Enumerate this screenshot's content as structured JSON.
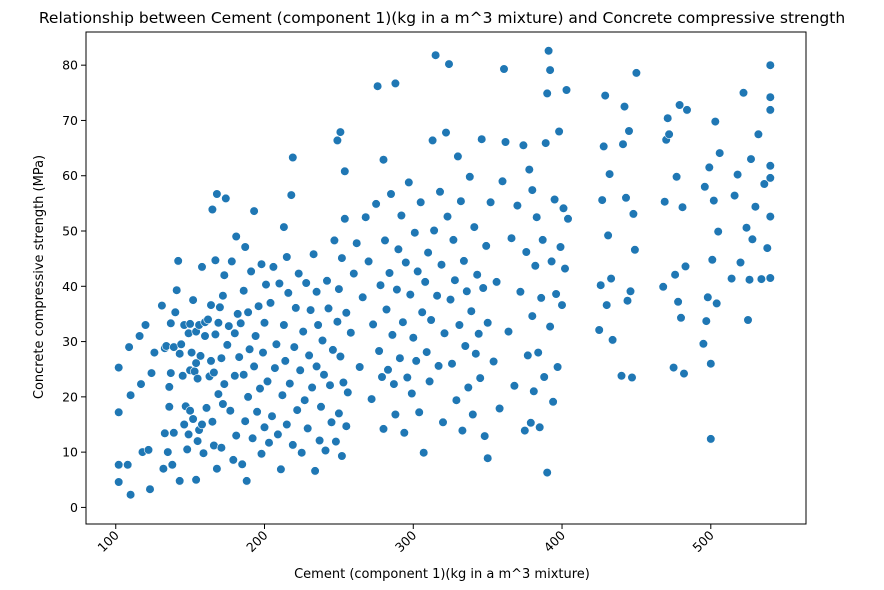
{
  "chart_data": {
    "type": "scatter",
    "title": "Relationship between Cement (component 1)(kg in a m^3 mixture) and Concrete compressive strength",
    "xlabel": "Cement (component 1)(kg in a m^3 mixture)",
    "ylabel": "Concrete compressive strength (MPa)",
    "xlim": [
      80,
      564
    ],
    "ylim": [
      -3,
      86
    ],
    "x_ticks": [
      100,
      200,
      300,
      400,
      500
    ],
    "x_tick_labels": [
      "100",
      "200",
      "300",
      "400",
      "500"
    ],
    "y_ticks": [
      0,
      10,
      20,
      30,
      40,
      50,
      60,
      70,
      80
    ],
    "y_tick_labels": [
      "0",
      "10",
      "20",
      "30",
      "40",
      "50",
      "60",
      "70",
      "80"
    ],
    "x_tick_rotation": 45,
    "grid": false,
    "legend": "none",
    "point_color": "#1f77b4",
    "point_edge_color": "#ffffff",
    "points": [
      [
        102,
        4.6
      ],
      [
        102,
        7.7
      ],
      [
        102,
        17.2
      ],
      [
        102,
        25.3
      ],
      [
        108,
        7.7
      ],
      [
        109,
        29
      ],
      [
        110,
        2.3
      ],
      [
        110,
        20.3
      ],
      [
        116,
        31
      ],
      [
        117,
        22.3
      ],
      [
        118,
        10
      ],
      [
        120,
        33
      ],
      [
        122,
        10.4
      ],
      [
        123,
        3.3
      ],
      [
        124,
        24.3
      ],
      [
        126,
        28
      ],
      [
        131,
        36.5
      ],
      [
        132,
        7
      ],
      [
        133,
        13.4
      ],
      [
        133,
        28.8
      ],
      [
        134,
        29.2
      ],
      [
        135,
        10
      ],
      [
        136,
        18.2
      ],
      [
        136,
        21.8
      ],
      [
        137,
        24.3
      ],
      [
        137,
        33.3
      ],
      [
        138,
        7.7
      ],
      [
        139,
        13.5
      ],
      [
        139,
        29
      ],
      [
        140,
        35.3
      ],
      [
        141,
        39.3
      ],
      [
        142,
        44.6
      ],
      [
        143,
        4.8
      ],
      [
        143,
        27.8
      ],
      [
        144,
        29.5
      ],
      [
        145,
        23.8
      ],
      [
        146,
        15
      ],
      [
        146,
        33
      ],
      [
        147,
        18.3
      ],
      [
        148,
        10.5
      ],
      [
        149,
        13.2
      ],
      [
        149,
        31.5
      ],
      [
        150,
        17.5
      ],
      [
        150,
        24.8
      ],
      [
        150,
        33.2
      ],
      [
        151,
        28
      ],
      [
        152,
        16
      ],
      [
        152,
        37.5
      ],
      [
        153,
        24.6
      ],
      [
        154,
        5
      ],
      [
        154,
        26.1
      ],
      [
        154,
        31.8
      ],
      [
        155,
        12
      ],
      [
        155,
        23.3
      ],
      [
        156,
        14
      ],
      [
        156,
        33
      ],
      [
        157,
        27.4
      ],
      [
        158,
        15
      ],
      [
        158,
        43.5
      ],
      [
        159,
        9.8
      ],
      [
        160,
        31
      ],
      [
        160,
        33.5
      ],
      [
        161,
        18
      ],
      [
        162,
        34
      ],
      [
        163,
        23.7
      ],
      [
        164,
        26.5
      ],
      [
        164,
        36.6
      ],
      [
        165,
        15.5
      ],
      [
        165,
        53.9
      ],
      [
        166,
        11.2
      ],
      [
        166,
        24.4
      ],
      [
        167,
        31.3
      ],
      [
        167,
        44.7
      ],
      [
        168,
        7
      ],
      [
        168,
        56.7
      ],
      [
        169,
        20.5
      ],
      [
        169,
        33.4
      ],
      [
        170,
        36.2
      ],
      [
        171,
        10.8
      ],
      [
        171,
        27
      ],
      [
        172,
        18.7
      ],
      [
        172,
        38.3
      ],
      [
        173,
        22.3
      ],
      [
        173,
        42
      ],
      [
        174,
        55.9
      ],
      [
        175,
        29.4
      ],
      [
        176,
        32.8
      ],
      [
        177,
        17.5
      ],
      [
        178,
        44.5
      ],
      [
        179,
        8.6
      ],
      [
        180,
        23.8
      ],
      [
        180,
        31.5
      ],
      [
        181,
        13
      ],
      [
        181,
        49
      ],
      [
        182,
        35
      ],
      [
        183,
        27.2
      ],
      [
        184,
        33.3
      ],
      [
        185,
        7.8
      ],
      [
        186,
        24
      ],
      [
        186,
        39.2
      ],
      [
        187,
        15.6
      ],
      [
        187,
        47.1
      ],
      [
        188,
        4.8
      ],
      [
        189,
        20
      ],
      [
        189,
        35.3
      ],
      [
        190,
        28.6
      ],
      [
        191,
        42.7
      ],
      [
        192,
        12.5
      ],
      [
        193,
        25.5
      ],
      [
        193,
        53.6
      ],
      [
        194,
        31
      ],
      [
        195,
        17.3
      ],
      [
        196,
        36.4
      ],
      [
        197,
        21.5
      ],
      [
        198,
        9.7
      ],
      [
        198,
        44
      ],
      [
        199,
        28
      ],
      [
        200,
        14.5
      ],
      [
        200,
        33.4
      ],
      [
        201,
        40.3
      ],
      [
        202,
        22.8
      ],
      [
        203,
        11.7
      ],
      [
        204,
        37
      ],
      [
        205,
        16.5
      ],
      [
        206,
        43.5
      ],
      [
        207,
        25.2
      ],
      [
        208,
        29.5
      ],
      [
        209,
        13.2
      ],
      [
        210,
        40.5
      ],
      [
        211,
        6.9
      ],
      [
        212,
        20.3
      ],
      [
        213,
        33
      ],
      [
        213,
        50.7
      ],
      [
        214,
        26.5
      ],
      [
        215,
        15
      ],
      [
        215,
        45.3
      ],
      [
        216,
        38.8
      ],
      [
        217,
        22.4
      ],
      [
        218,
        56.5
      ],
      [
        219,
        11.3
      ],
      [
        219,
        63.3
      ],
      [
        220,
        29
      ],
      [
        221,
        36.1
      ],
      [
        222,
        17.6
      ],
      [
        223,
        42.3
      ],
      [
        224,
        24.8
      ],
      [
        225,
        9.9
      ],
      [
        226,
        31.8
      ],
      [
        227,
        19.4
      ],
      [
        228,
        40.6
      ],
      [
        229,
        14.3
      ],
      [
        230,
        27.5
      ],
      [
        231,
        35.7
      ],
      [
        232,
        21.7
      ],
      [
        233,
        45.8
      ],
      [
        234,
        6.6
      ],
      [
        235,
        25.5
      ],
      [
        235,
        39
      ],
      [
        236,
        33
      ],
      [
        237,
        12.1
      ],
      [
        238,
        18.2
      ],
      [
        239,
        30.2
      ],
      [
        240,
        24
      ],
      [
        241,
        10.3
      ],
      [
        242,
        41
      ],
      [
        243,
        36
      ],
      [
        244,
        22.1
      ],
      [
        245,
        15.4
      ],
      [
        246,
        28.5
      ],
      [
        247,
        48.3
      ],
      [
        248,
        11.9
      ],
      [
        249,
        33.6
      ],
      [
        249,
        66.4
      ],
      [
        250,
        17
      ],
      [
        250,
        39.5
      ],
      [
        251,
        27.3
      ],
      [
        251,
        67.9
      ],
      [
        252,
        9.3
      ],
      [
        252,
        45.1
      ],
      [
        253,
        22.6
      ],
      [
        254,
        52.2
      ],
      [
        254,
        60.8
      ],
      [
        255,
        14.7
      ],
      [
        255,
        35.2
      ],
      [
        256,
        20.8
      ],
      [
        258,
        31.6
      ],
      [
        260,
        42.3
      ],
      [
        262,
        47.8
      ],
      [
        264,
        25.4
      ],
      [
        266,
        38
      ],
      [
        268,
        52.5
      ],
      [
        270,
        44.5
      ],
      [
        272,
        19.6
      ],
      [
        273,
        33.1
      ],
      [
        275,
        54.9
      ],
      [
        276,
        76.2
      ],
      [
        277,
        28.3
      ],
      [
        278,
        40.2
      ],
      [
        279,
        23.6
      ],
      [
        280,
        14.2
      ],
      [
        280,
        62.9
      ],
      [
        281,
        48.3
      ],
      [
        282,
        35.8
      ],
      [
        283,
        24.9
      ],
      [
        284,
        42.4
      ],
      [
        285,
        56.7
      ],
      [
        286,
        31.2
      ],
      [
        287,
        22.3
      ],
      [
        288,
        76.7
      ],
      [
        288,
        16.8
      ],
      [
        289,
        39.4
      ],
      [
        290,
        46.7
      ],
      [
        291,
        27
      ],
      [
        292,
        52.8
      ],
      [
        293,
        33.5
      ],
      [
        294,
        13.5
      ],
      [
        295,
        44.3
      ],
      [
        296,
        23.5
      ],
      [
        297,
        58.8
      ],
      [
        298,
        38.5
      ],
      [
        299,
        20.6
      ],
      [
        300,
        30.7
      ],
      [
        301,
        49.7
      ],
      [
        302,
        26.5
      ],
      [
        303,
        42.7
      ],
      [
        304,
        17.2
      ],
      [
        305,
        55.2
      ],
      [
        306,
        35.3
      ],
      [
        307,
        9.9
      ],
      [
        308,
        40.8
      ],
      [
        309,
        28.1
      ],
      [
        310,
        46.1
      ],
      [
        311,
        22.8
      ],
      [
        312,
        33.9
      ],
      [
        313,
        66.4
      ],
      [
        314,
        50.1
      ],
      [
        315,
        81.8
      ],
      [
        316,
        38.3
      ],
      [
        317,
        25.6
      ],
      [
        318,
        57.1
      ],
      [
        319,
        43.9
      ],
      [
        320,
        15.4
      ],
      [
        321,
        31.5
      ],
      [
        322,
        67.8
      ],
      [
        323,
        52.6
      ],
      [
        324,
        80.2
      ],
      [
        325,
        37.6
      ],
      [
        326,
        26
      ],
      [
        327,
        48.4
      ],
      [
        328,
        41.1
      ],
      [
        329,
        19.4
      ],
      [
        330,
        63.5
      ],
      [
        331,
        33
      ],
      [
        332,
        55.4
      ],
      [
        333,
        13.9
      ],
      [
        334,
        44.6
      ],
      [
        335,
        29.2
      ],
      [
        336,
        39.1
      ],
      [
        337,
        21.7
      ],
      [
        338,
        59.8
      ],
      [
        339,
        35.5
      ],
      [
        340,
        16.8
      ],
      [
        341,
        50.7
      ],
      [
        342,
        27.8
      ],
      [
        343,
        42.1
      ],
      [
        344,
        31.4
      ],
      [
        345,
        23.4
      ],
      [
        346,
        66.6
      ],
      [
        347,
        39.7
      ],
      [
        348,
        12.9
      ],
      [
        349,
        47.3
      ],
      [
        350,
        33.4
      ],
      [
        350,
        8.9
      ],
      [
        352,
        55.2
      ],
      [
        354,
        26.4
      ],
      [
        356,
        40.8
      ],
      [
        358,
        17.9
      ],
      [
        360,
        59
      ],
      [
        361,
        79.3
      ],
      [
        362,
        66.1
      ],
      [
        364,
        31.8
      ],
      [
        366,
        48.7
      ],
      [
        368,
        22
      ],
      [
        370,
        54.6
      ],
      [
        372,
        39
      ],
      [
        374,
        65.5
      ],
      [
        375,
        13.9
      ],
      [
        376,
        46.2
      ],
      [
        377,
        27.5
      ],
      [
        378,
        61.1
      ],
      [
        379,
        15.3
      ],
      [
        380,
        34.6
      ],
      [
        380,
        57.4
      ],
      [
        381,
        21
      ],
      [
        382,
        43.7
      ],
      [
        383,
        52.5
      ],
      [
        384,
        28
      ],
      [
        385,
        14.5
      ],
      [
        386,
        37.9
      ],
      [
        387,
        48.4
      ],
      [
        388,
        23.6
      ],
      [
        389,
        65.9
      ],
      [
        390,
        6.3
      ],
      [
        390,
        74.9
      ],
      [
        391,
        82.6
      ],
      [
        392,
        79.1
      ],
      [
        392,
        32.7
      ],
      [
        393,
        44.5
      ],
      [
        394,
        19.1
      ],
      [
        395,
        55.7
      ],
      [
        396,
        38.6
      ],
      [
        397,
        25.4
      ],
      [
        398,
        68
      ],
      [
        399,
        47.1
      ],
      [
        400,
        36.6
      ],
      [
        401,
        54.1
      ],
      [
        402,
        43.2
      ],
      [
        403,
        75.5
      ],
      [
        404,
        52.2
      ],
      [
        425,
        32.1
      ],
      [
        426,
        40.2
      ],
      [
        427,
        55.6
      ],
      [
        428,
        65.3
      ],
      [
        429,
        74.5
      ],
      [
        430,
        36.6
      ],
      [
        431,
        49.2
      ],
      [
        432,
        60.3
      ],
      [
        433,
        41.4
      ],
      [
        434,
        30.3
      ],
      [
        440,
        23.8
      ],
      [
        441,
        65.7
      ],
      [
        442,
        72.5
      ],
      [
        443,
        56
      ],
      [
        444,
        37.4
      ],
      [
        445,
        68.1
      ],
      [
        446,
        39.1
      ],
      [
        447,
        23.5
      ],
      [
        448,
        53.1
      ],
      [
        449,
        46.6
      ],
      [
        450,
        78.6
      ],
      [
        468,
        39.9
      ],
      [
        469,
        55.3
      ],
      [
        470,
        66.5
      ],
      [
        471,
        70.4
      ],
      [
        472,
        67.5
      ],
      [
        475,
        25.3
      ],
      [
        476,
        42.1
      ],
      [
        477,
        59.8
      ],
      [
        478,
        37.2
      ],
      [
        479,
        72.8
      ],
      [
        480,
        34.3
      ],
      [
        481,
        54.3
      ],
      [
        482,
        24.2
      ],
      [
        483,
        43.6
      ],
      [
        484,
        71.9
      ],
      [
        495,
        29.6
      ],
      [
        496,
        58
      ],
      [
        497,
        33.7
      ],
      [
        498,
        38
      ],
      [
        499,
        61.5
      ],
      [
        500,
        12.4
      ],
      [
        500,
        26
      ],
      [
        501,
        44.8
      ],
      [
        502,
        55.5
      ],
      [
        503,
        69.8
      ],
      [
        504,
        36.9
      ],
      [
        505,
        49.9
      ],
      [
        506,
        64.1
      ],
      [
        514,
        41.4
      ],
      [
        516,
        56.4
      ],
      [
        518,
        60.2
      ],
      [
        520,
        44.3
      ],
      [
        522,
        75
      ],
      [
        524,
        50.6
      ],
      [
        525,
        33.9
      ],
      [
        526,
        41.2
      ],
      [
        527,
        63
      ],
      [
        528,
        48.5
      ],
      [
        530,
        54.4
      ],
      [
        532,
        67.5
      ],
      [
        534,
        41.3
      ],
      [
        536,
        58.5
      ],
      [
        538,
        46.9
      ],
      [
        540,
        52.6
      ],
      [
        540,
        61.8
      ],
      [
        540,
        71.9
      ],
      [
        540,
        80
      ],
      [
        540,
        41.5
      ],
      [
        540,
        74.2
      ],
      [
        540,
        59.6
      ]
    ]
  }
}
